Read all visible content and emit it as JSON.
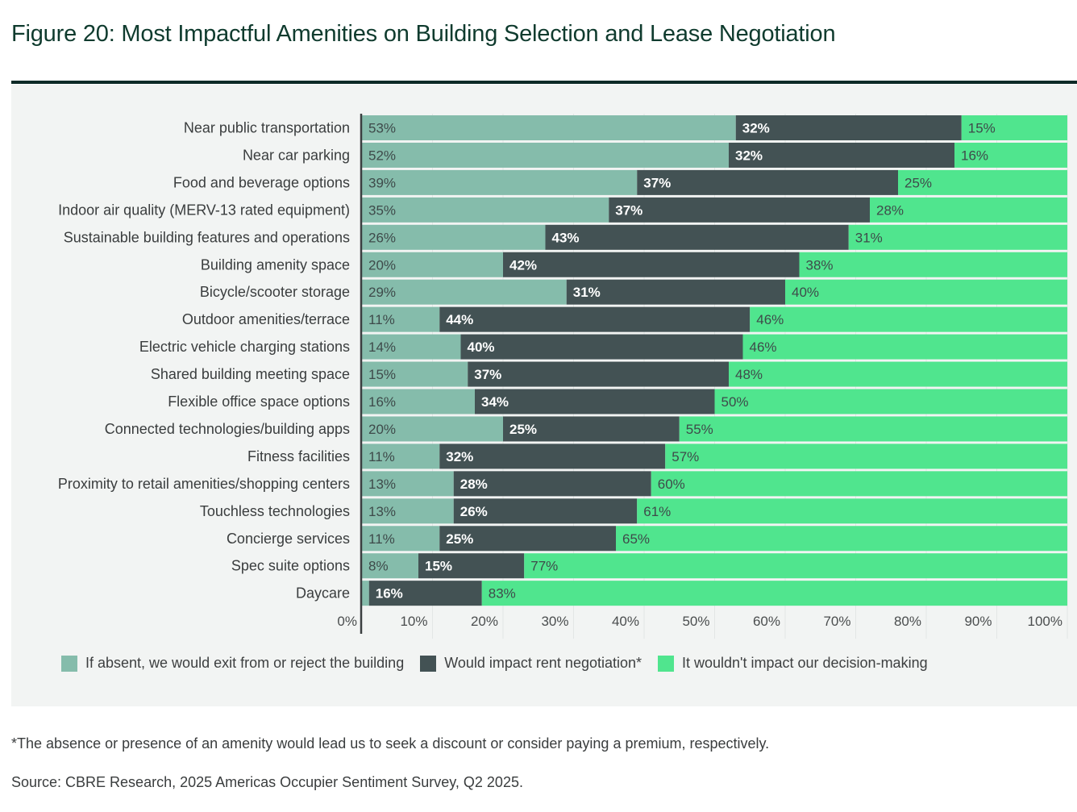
{
  "title": "Figure 20: Most Impactful Amenities on Building Selection and Lease Negotiation",
  "footnote": "*The absence or presence of an amenity would lead us to seek a discount or consider paying a premium, respectively.",
  "source": "Source: CBRE Research, 2025 Americas Occupier Sentiment Survey, Q2 2025.",
  "colors": {
    "exit": "#85bcab",
    "rent": "#435254",
    "no_impact": "#50e58e",
    "label_dark": "#3e4a4a",
    "label_light": "#ffffff"
  },
  "chart_data": {
    "type": "bar",
    "orientation": "horizontal",
    "stacked": true,
    "title": "Figure 20: Most Impactful Amenities on Building Selection and Lease Negotiation",
    "xlabel": "",
    "ylabel": "",
    "xlim": [
      0,
      100
    ],
    "x_ticks": [
      "0%",
      "10%",
      "20%",
      "30%",
      "40%",
      "50%",
      "60%",
      "70%",
      "80%",
      "90%",
      "100%"
    ],
    "grid": true,
    "legend_position": "bottom",
    "categories": [
      "Near public transportation",
      "Near car parking",
      "Food and beverage options",
      "Indoor air quality (MERV-13 rated equipment)",
      "Sustainable building features and operations",
      "Building amenity space",
      "Bicycle/scooter storage",
      "Outdoor amenities/terrace",
      "Electric vehicle charging stations",
      "Shared building meeting space",
      "Flexible office space options",
      "Connected technologies/building apps",
      "Fitness facilities",
      "Proximity to retail amenities/shopping centers",
      "Touchless technologies",
      "Concierge services",
      "Spec suite options",
      "Daycare"
    ],
    "series": [
      {
        "name": "If absent, we would exit from or reject the building",
        "color_key": "exit",
        "values": [
          53,
          52,
          39,
          35,
          26,
          20,
          29,
          11,
          14,
          15,
          16,
          20,
          11,
          13,
          13,
          11,
          8,
          1
        ],
        "labels": [
          "53%",
          "52%",
          "39%",
          "35%",
          "26%",
          "20%",
          "29%",
          "11%",
          "14%",
          "15%",
          "16%",
          "20%",
          "11%",
          "13%",
          "13%",
          "11%",
          "8%",
          ""
        ]
      },
      {
        "name": "Would impact rent negotiation*",
        "color_key": "rent",
        "values": [
          32,
          32,
          37,
          37,
          43,
          42,
          31,
          44,
          40,
          37,
          34,
          25,
          32,
          28,
          26,
          25,
          15,
          16
        ],
        "labels": [
          "32%",
          "32%",
          "37%",
          "37%",
          "43%",
          "42%",
          "31%",
          "44%",
          "40%",
          "37%",
          "34%",
          "25%",
          "32%",
          "28%",
          "26%",
          "25%",
          "15%",
          "16%"
        ]
      },
      {
        "name": "It wouldn't impact our decision-making",
        "color_key": "no_impact",
        "values": [
          15,
          16,
          25,
          28,
          31,
          38,
          40,
          46,
          46,
          48,
          50,
          55,
          57,
          60,
          61,
          65,
          77,
          83
        ],
        "labels": [
          "15%",
          "16%",
          "25%",
          "28%",
          "31%",
          "38%",
          "40%",
          "46%",
          "46%",
          "48%",
          "50%",
          "55%",
          "57%",
          "60%",
          "61%",
          "65%",
          "77%",
          "83%"
        ]
      }
    ]
  }
}
